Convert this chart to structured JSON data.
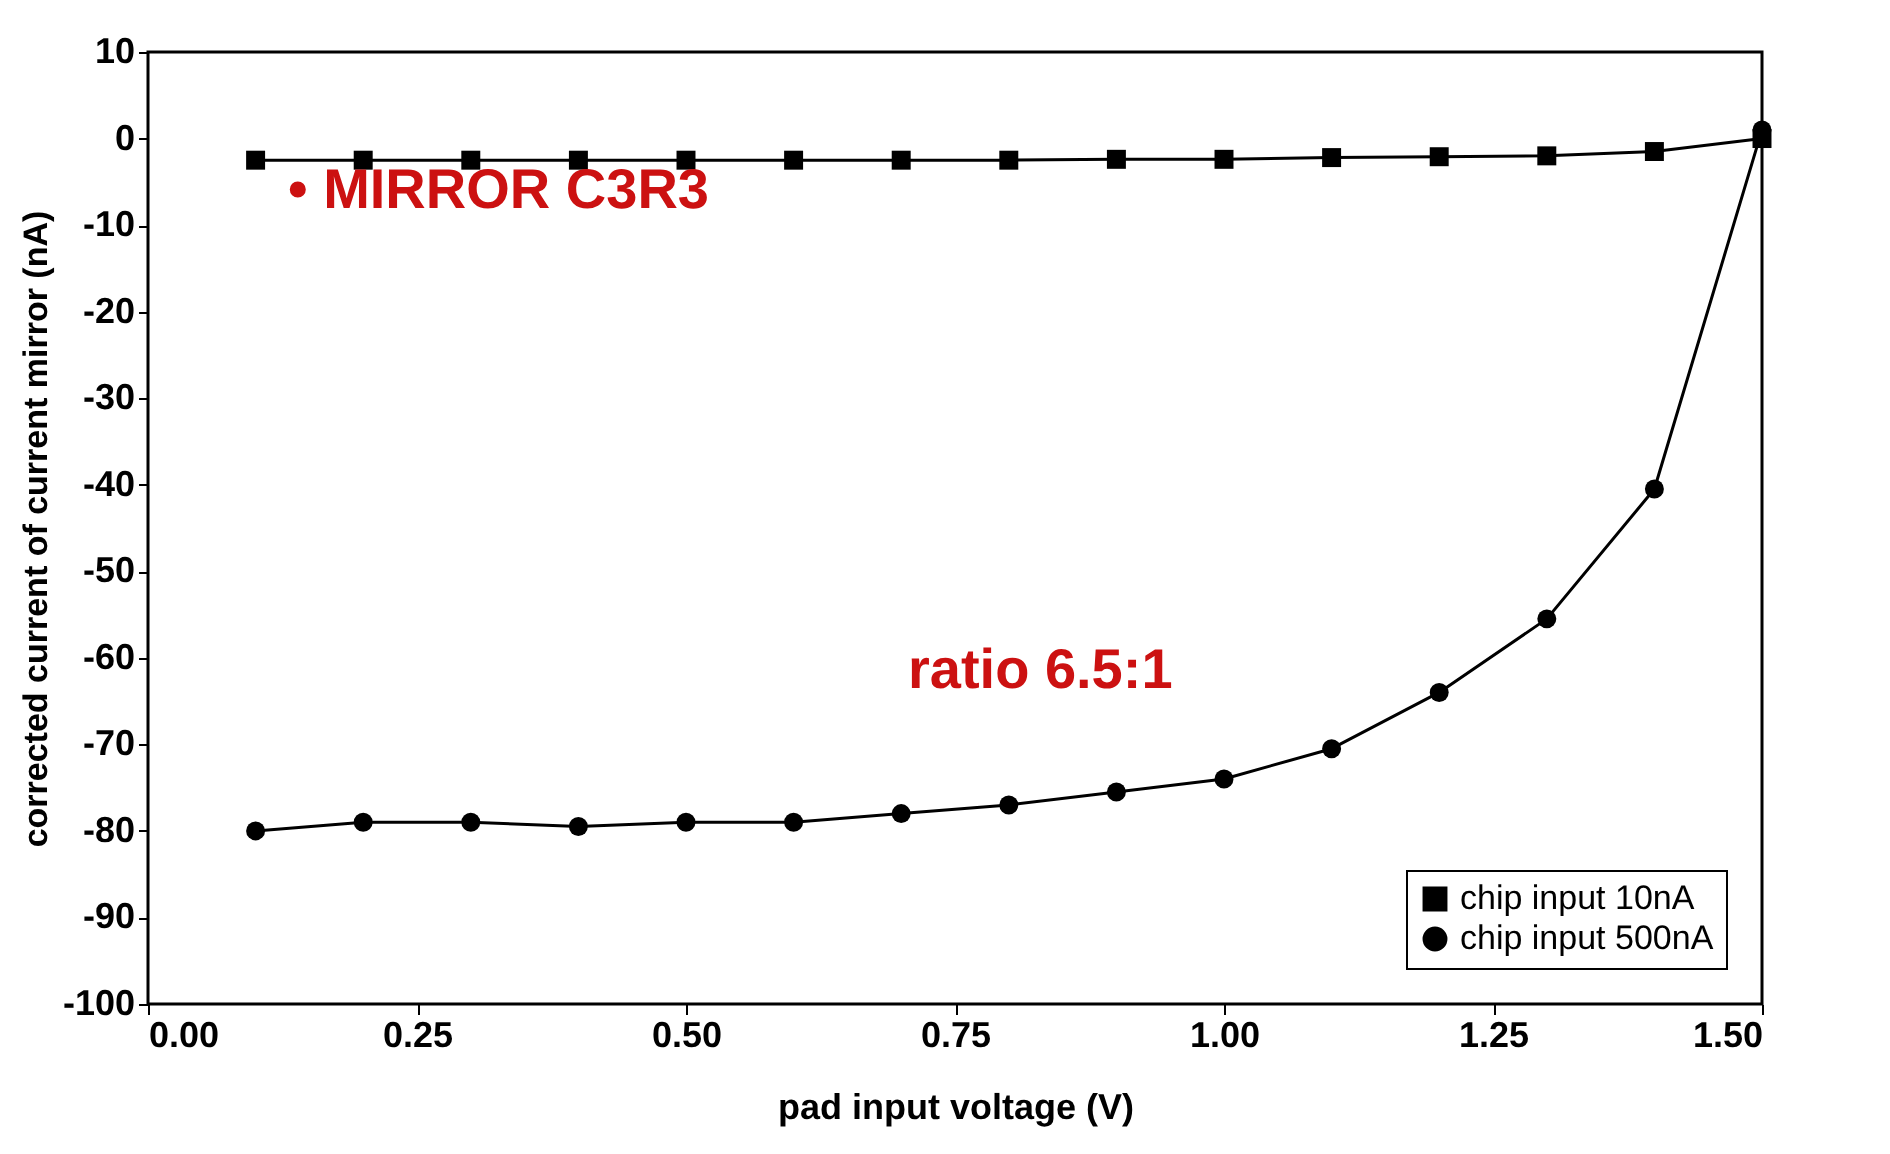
{
  "chart_data": {
    "type": "line",
    "xlabel": "pad input voltage (V)",
    "ylabel": "corrected current of current mirror (nA)",
    "x": [
      0.1,
      0.2,
      0.3,
      0.4,
      0.5,
      0.6,
      0.7,
      0.8,
      0.9,
      1.0,
      1.1,
      1.2,
      1.3,
      1.4,
      1.5
    ],
    "series": [
      {
        "name": "chip input 10nA",
        "color": "#000000",
        "marker": "square",
        "values": [
          -2.5,
          -2.5,
          -2.5,
          -2.5,
          -2.5,
          -2.5,
          -2.5,
          -2.5,
          -2.4,
          -2.4,
          -2.2,
          -2.1,
          -2,
          -1.5,
          0
        ]
      },
      {
        "name": "chip input 500nA",
        "color": "#000000",
        "marker": "circle",
        "values": [
          -80,
          -79,
          -79,
          -79.5,
          -79,
          -79,
          -78,
          -77,
          -75.5,
          -74,
          -70.5,
          -64,
          -55.5,
          -40.5,
          1
        ]
      }
    ],
    "xlim": [
      0,
      1.5
    ],
    "xticks": [
      {
        "value": 0,
        "label": "0.00"
      },
      {
        "value": 0.25,
        "label": "0.25"
      },
      {
        "value": 0.5,
        "label": "0.50"
      },
      {
        "value": 0.75,
        "label": "0.75"
      },
      {
        "value": 1,
        "label": "1.00"
      },
      {
        "value": 1.25,
        "label": "1.25"
      },
      {
        "value": 1.5,
        "label": "1.50"
      }
    ],
    "ylim": [
      -100,
      10
    ],
    "yticks": [
      -100,
      -90,
      -80,
      -70,
      -60,
      -50,
      -40,
      -30,
      -20,
      -10,
      0,
      10
    ],
    "annotations": [
      "• MIRROR C3R3",
      "ratio 6.5:1"
    ],
    "grid": false,
    "legend": "bottom right",
    "line_style": "solid"
  }
}
